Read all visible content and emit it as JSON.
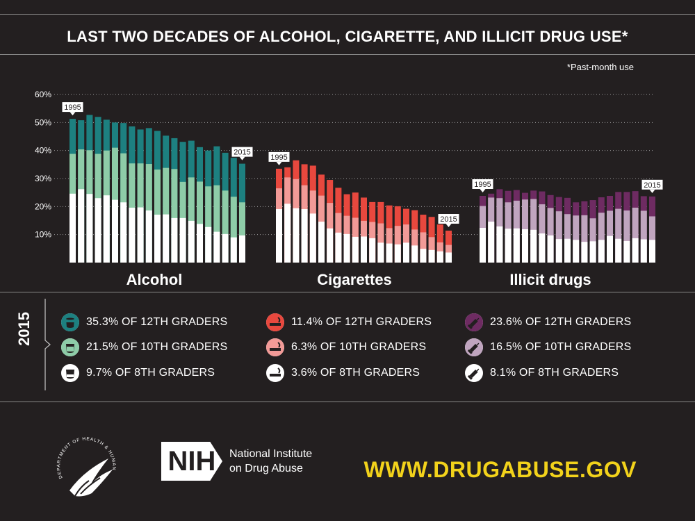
{
  "title": "LAST TWO DECADES OF ALCOHOL, CIGARETTE, AND ILLICIT DRUG USE*",
  "footnote": "*Past-month use",
  "colors": {
    "background": "#231f20",
    "alcohol": {
      "g12": "#1d8080",
      "g10": "#8ecca8",
      "g8": "#ffffff"
    },
    "cigarettes": {
      "g12": "#e8483e",
      "g10": "#f29a97",
      "g8": "#ffffff"
    },
    "illicit": {
      "g12": "#6e2b62",
      "g10": "#c0a5bf",
      "g8": "#ffffff"
    },
    "url": "#f2d21b"
  },
  "chart_data": {
    "type": "bar",
    "stacked": "overlay",
    "ylim": [
      0,
      60
    ],
    "yticks": [
      "10%",
      "20%",
      "30%",
      "40%",
      "50%",
      "60%"
    ],
    "grid": true,
    "x": [
      1995,
      1996,
      1997,
      1998,
      1999,
      2000,
      2001,
      2002,
      2003,
      2004,
      2005,
      2006,
      2007,
      2008,
      2009,
      2010,
      2011,
      2012,
      2013,
      2014,
      2015
    ],
    "groups": [
      {
        "name": "Alcohol",
        "start_label": "1995",
        "end_label": "2015",
        "series": [
          {
            "grade": "12th",
            "values": [
              51.3,
              50.8,
              52.7,
              52.0,
              51.0,
              50.0,
              49.8,
              48.6,
              47.5,
              48.0,
              47.0,
              45.3,
              44.4,
              43.1,
              43.5,
              41.2,
              40.0,
              41.5,
              39.2,
              37.4,
              35.3
            ]
          },
          {
            "grade": "10th",
            "values": [
              38.8,
              40.4,
              40.1,
              38.8,
              40.0,
              41.0,
              39.0,
              35.4,
              35.4,
              35.2,
              33.2,
              33.8,
              33.4,
              28.8,
              30.4,
              28.9,
              27.2,
              27.6,
              25.7,
              23.5,
              21.5
            ]
          },
          {
            "grade": "8th",
            "values": [
              24.6,
              26.2,
              24.5,
              23.0,
              24.0,
              22.4,
              21.5,
              19.6,
              19.7,
              18.6,
              17.1,
              17.2,
              15.9,
              15.9,
              14.9,
              13.8,
              12.7,
              11.0,
              10.2,
              9.0,
              9.7
            ]
          }
        ]
      },
      {
        "name": "Cigarettes",
        "start_label": "1995",
        "end_label": "2015",
        "series": [
          {
            "grade": "12th",
            "values": [
              33.5,
              34.0,
              36.5,
              35.1,
              34.6,
              31.4,
              29.5,
              26.7,
              24.4,
              25.0,
              23.2,
              21.6,
              21.6,
              20.4,
              20.1,
              19.2,
              18.7,
              17.1,
              16.3,
              13.6,
              11.4
            ]
          },
          {
            "grade": "10th",
            "values": [
              26.5,
              30.4,
              29.8,
              27.6,
              25.7,
              23.9,
              21.3,
              17.7,
              16.7,
              16.0,
              14.9,
              14.5,
              14.0,
              12.3,
              13.1,
              13.6,
              11.8,
              10.8,
              9.1,
              7.2,
              6.3
            ]
          },
          {
            "grade": "8th",
            "values": [
              19.1,
              21.0,
              19.4,
              19.1,
              17.5,
              14.6,
              12.2,
              10.7,
              10.2,
              9.2,
              9.3,
              8.7,
              7.1,
              6.8,
              6.5,
              7.1,
              6.1,
              4.9,
              4.5,
              4.0,
              3.6
            ]
          }
        ]
      },
      {
        "name": "Illicit drugs",
        "start_label": "1995",
        "end_label": "2015",
        "series": [
          {
            "grade": "12th",
            "values": [
              23.8,
              24.6,
              26.2,
              25.6,
              25.9,
              24.9,
              25.7,
              25.4,
              24.1,
              23.4,
              23.1,
              21.5,
              21.9,
              22.3,
              23.3,
              23.8,
              25.2,
              25.2,
              25.5,
              23.7,
              23.6
            ]
          },
          {
            "grade": "10th",
            "values": [
              20.2,
              23.2,
              23.0,
              21.5,
              22.1,
              22.5,
              22.7,
              20.8,
              19.5,
              18.3,
              17.3,
              16.8,
              16.9,
              15.8,
              17.8,
              18.5,
              19.2,
              18.6,
              19.6,
              18.5,
              16.5
            ]
          },
          {
            "grade": "8th",
            "values": [
              12.4,
              14.6,
              12.9,
              12.1,
              12.2,
              11.9,
              11.7,
              10.4,
              9.7,
              8.4,
              8.5,
              8.1,
              7.4,
              7.6,
              8.1,
              9.5,
              8.5,
              7.7,
              8.7,
              8.3,
              8.1
            ]
          }
        ]
      }
    ]
  },
  "legend": {
    "year": "2015",
    "alcohol": [
      "35.3% OF 12TH GRADERS",
      "21.5% OF 10TH GRADERS",
      "9.7% OF 8TH GRADERS"
    ],
    "cigarettes": [
      "11.4% OF 12TH GRADERS",
      "6.3% OF 10TH GRADERS",
      "3.6% OF 8TH GRADERS"
    ],
    "illicit": [
      "23.6% OF 12TH GRADERS",
      "16.5% OF 10TH GRADERS",
      "8.1% OF 8TH GRADERS"
    ]
  },
  "footer": {
    "nih_mark": "NIH",
    "nih_line1": "National Institute",
    "nih_line2": "on Drug Abuse",
    "url": "WWW.DRUGABUSE.GOV",
    "hhs_seal_text": "DEPARTMENT OF HEALTH & HUMAN SERVICES · USA"
  }
}
